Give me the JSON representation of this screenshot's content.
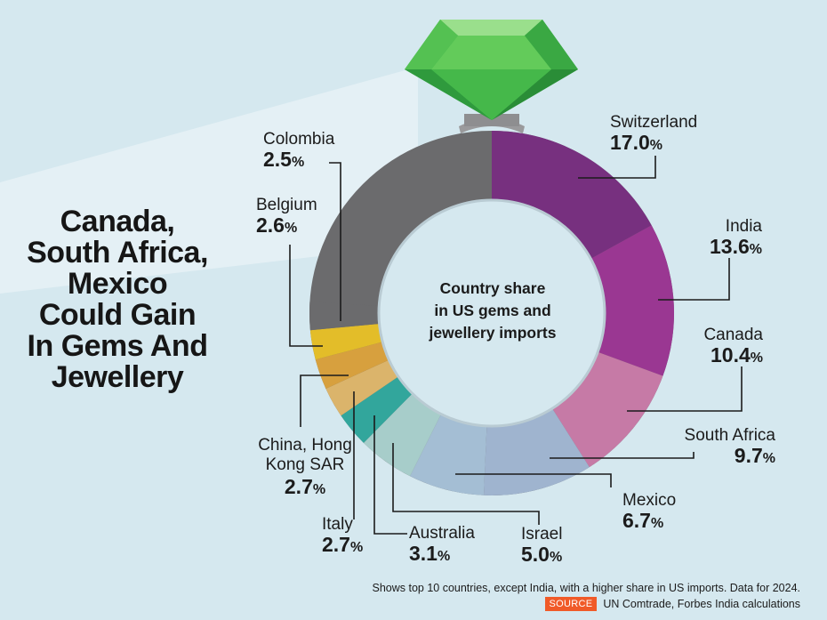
{
  "headline": [
    "Canada,",
    "South Africa,",
    "Mexico",
    "Could Gain",
    "In Gems And",
    "Jewellery"
  ],
  "center_label": [
    "Country share",
    "in US gems and",
    "jewellery imports"
  ],
  "footnote": "Shows top 10 countries, except India, with a higher share in US imports. Data for 2024.",
  "source": {
    "tag": "SOURCE",
    "text": "UN Comtrade, Forbes India calculations"
  },
  "colors": {
    "background": "#d5e8ef",
    "gem": "#3fb54a",
    "source_tag": "#f05a28"
  },
  "chart_data": {
    "type": "donut",
    "title": "Country share in US gems and jewellery imports",
    "unit": "%",
    "categories": [
      "Switzerland",
      "India",
      "Canada",
      "South Africa",
      "Mexico",
      "Israel",
      "Australia",
      "Italy",
      "China, Hong Kong SAR",
      "Belgium",
      "Colombia"
    ],
    "values": [
      17.0,
      13.6,
      10.4,
      9.7,
      6.7,
      5.0,
      3.1,
      2.7,
      2.7,
      2.6,
      2.5
    ],
    "value_labels": [
      "17.0",
      "13.6",
      "10.4",
      "9.7",
      "6.7",
      "5.0",
      "3.1",
      "2.7",
      "2.7",
      "2.6",
      "2.5"
    ],
    "pct_symbol": "%",
    "slice_colors": [
      "#77307f",
      "#9a3792",
      "#c67aa6",
      "#9fb4cf",
      "#a4bed4",
      "#a7cdca",
      "#32a69c",
      "#dbb46b",
      "#d7a03e",
      "#e3bd29",
      "#6b6b6d"
    ],
    "remainder_color": "#6b6b6d"
  }
}
